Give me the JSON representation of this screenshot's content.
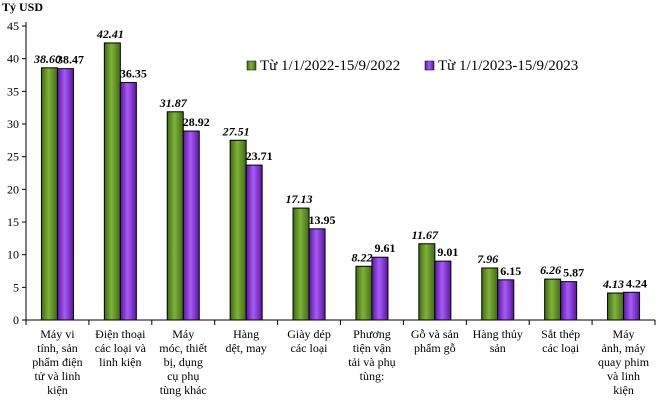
{
  "chart_data": {
    "type": "bar",
    "title": "",
    "ylabel": "Tỷ USD",
    "xlabel": "",
    "ylim": [
      0,
      45
    ],
    "yticks": [
      0,
      5,
      10,
      15,
      20,
      25,
      30,
      35,
      40,
      45
    ],
    "grid": false,
    "legend_position": "top-right",
    "categories": [
      [
        "Máy vi",
        "tính, sản",
        "phẩm điện",
        "tử và linh",
        "kiện"
      ],
      [
        "Điện thoại",
        "các loại và",
        "linh kiện"
      ],
      [
        "Máy",
        "móc, thiết",
        "bị, dụng",
        "cụ phụ",
        "tùng khác"
      ],
      [
        "Hàng",
        "dệt, may"
      ],
      [
        "Giày dép",
        "các loại"
      ],
      [
        "Phương",
        "tiện vận",
        "tải và phụ",
        "tùng:"
      ],
      [
        "Gỗ và sản",
        "phẩm gỗ"
      ],
      [
        "Hàng thủy",
        "sản"
      ],
      [
        "Sắt thép",
        "các loại"
      ],
      [
        "Máy",
        "ảnh, máy",
        "quay phim",
        "và linh",
        "kiện"
      ]
    ],
    "series": [
      {
        "name": "Từ 1/1/2022-15/9/2022",
        "color": "#5a8a1e",
        "values": [
          38.6,
          42.41,
          31.87,
          27.51,
          17.13,
          8.22,
          11.67,
          7.96,
          6.26,
          4.13
        ],
        "labels": [
          "38.60",
          "42.41",
          "31.87",
          "27.51",
          "17.13",
          "8.22",
          "11.67",
          "7.96",
          "6.26",
          "4.13"
        ]
      },
      {
        "name": "Từ 1/1/2023-15/9/2023",
        "color": "#8a2be2",
        "values": [
          38.47,
          36.35,
          28.92,
          23.71,
          13.95,
          9.61,
          9.01,
          6.15,
          5.87,
          4.24
        ],
        "labels": [
          "38.47",
          "36.35",
          "28.92",
          "23.71",
          "13.95",
          "9.61",
          "9.01",
          "6.15",
          "5.87",
          "4.24"
        ]
      }
    ]
  }
}
